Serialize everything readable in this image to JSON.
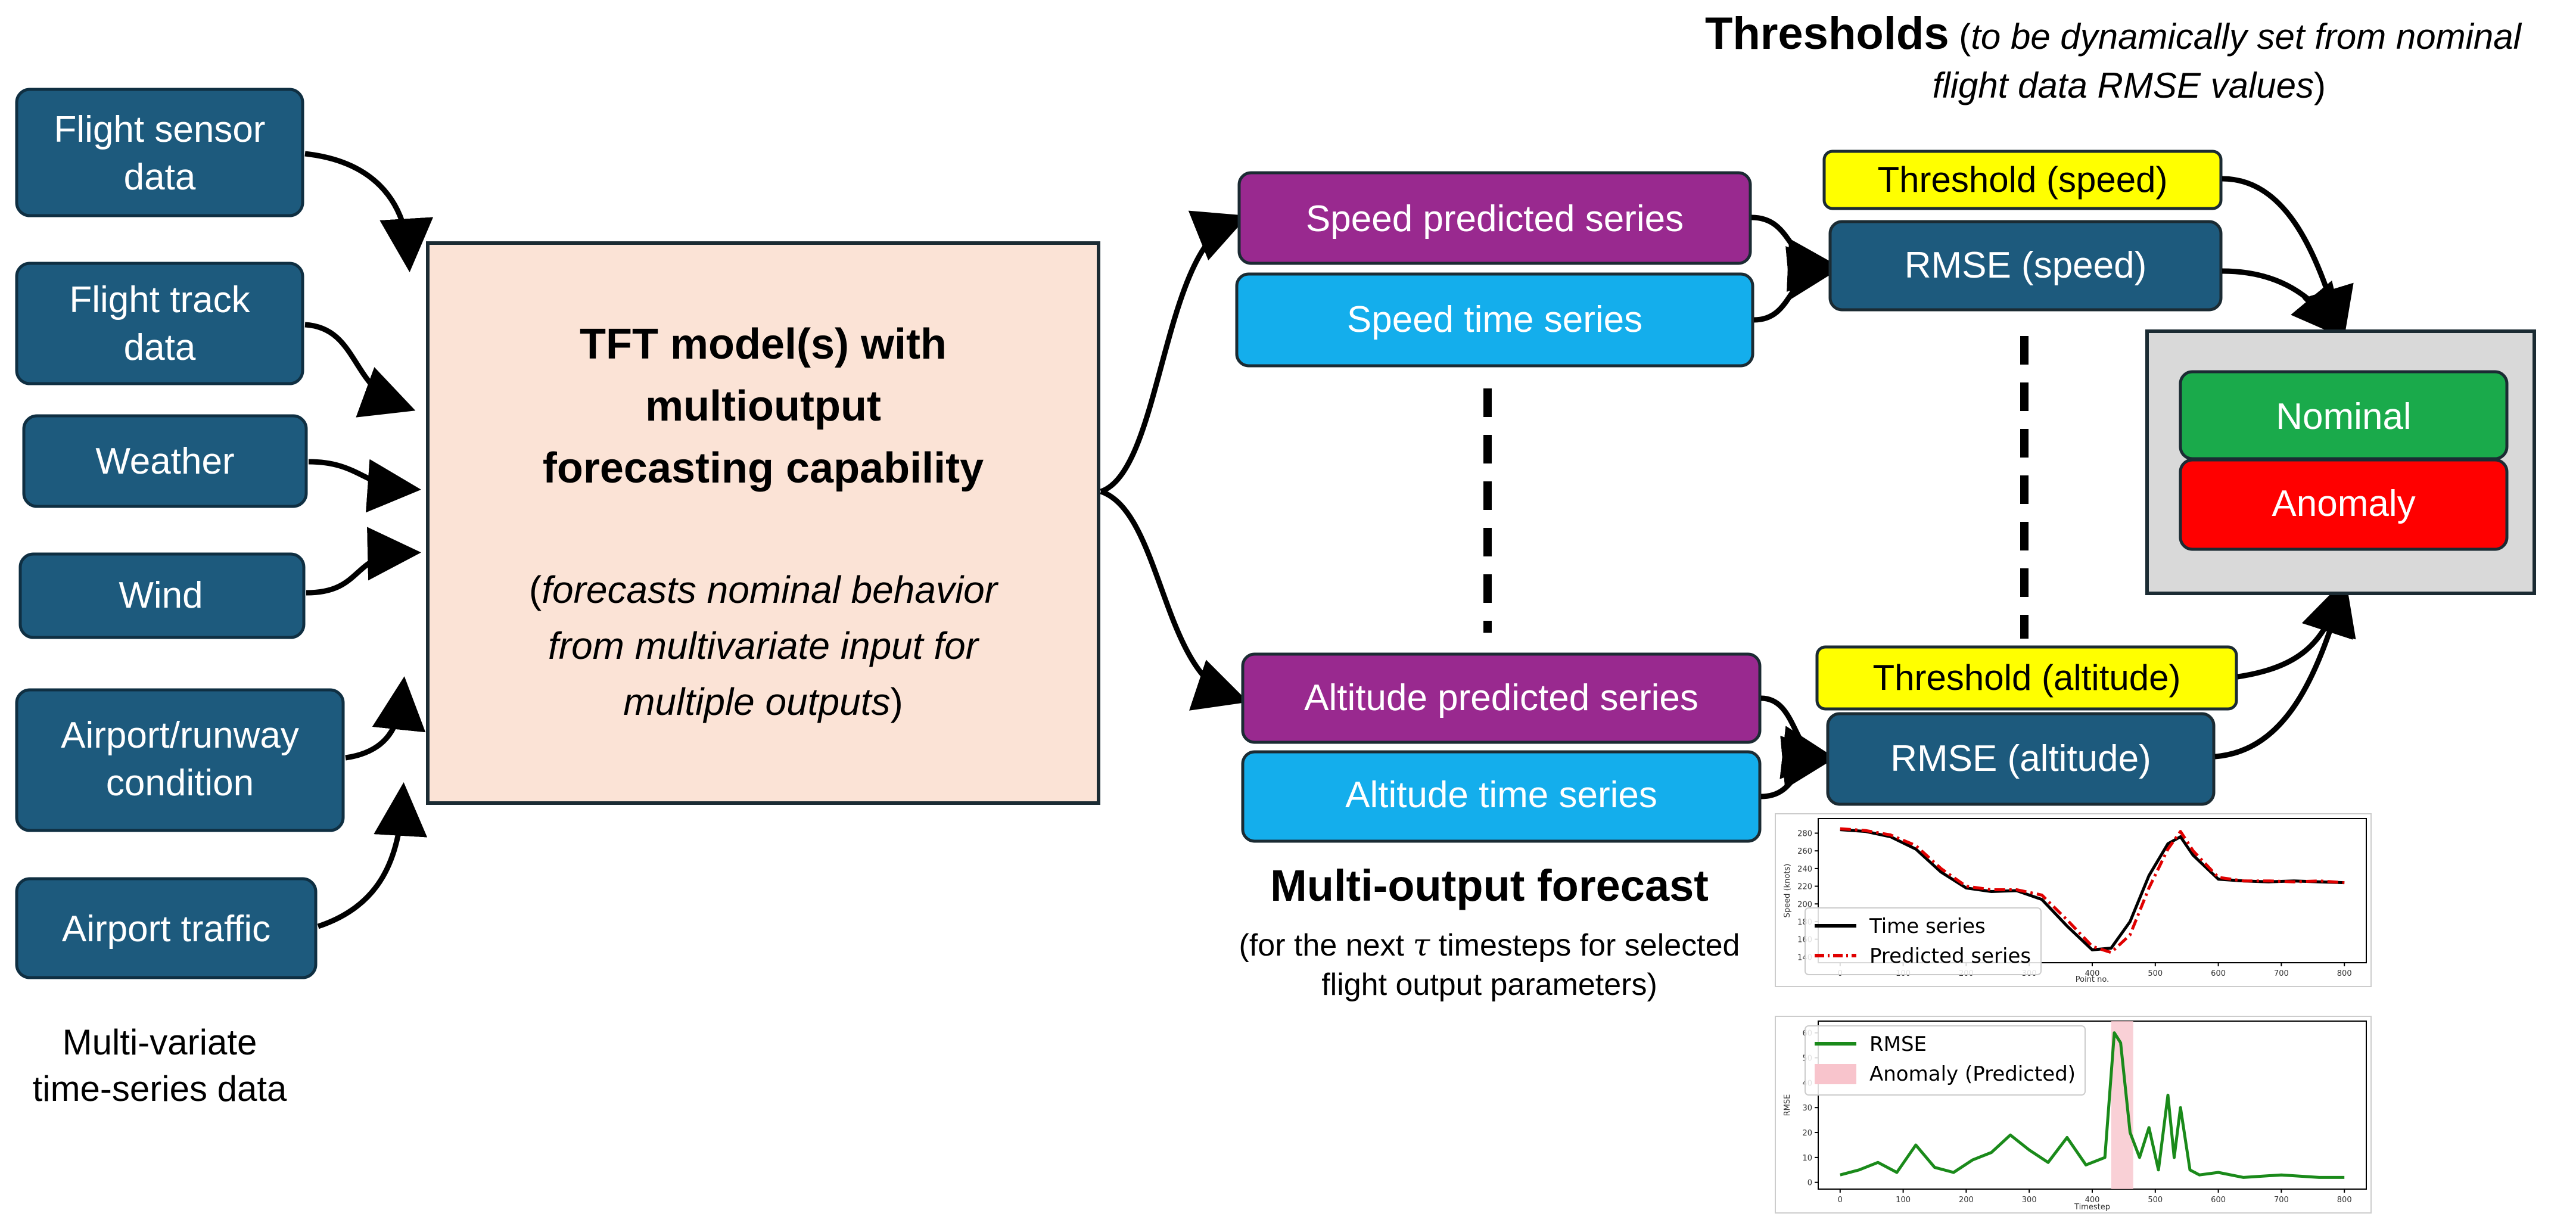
{
  "inputs": {
    "sensor": [
      "Flight sensor",
      "data"
    ],
    "track": [
      "Flight track",
      "data"
    ],
    "weather": "Weather",
    "wind": "Wind",
    "airport_condition": [
      "Airport/runway",
      "condition"
    ],
    "traffic": "Airport traffic",
    "caption": [
      "Multi-variate",
      "time-series data"
    ]
  },
  "model": {
    "title": [
      "TFT model(s) with",
      "multioutput",
      "forecasting capability"
    ],
    "desc_open": "(",
    "desc_line1_italic": "forecasts nominal behavior",
    "desc_line2_italic": "from multivariate input for",
    "desc_line3_italic": "multiple outputs",
    "desc_close": ")"
  },
  "forecast": {
    "speed_pred": "Speed predicted series",
    "speed_ts": "Speed time series",
    "alt_pred": "Altitude predicted series",
    "alt_ts": "Altitude time series",
    "title": "Multi-output forecast",
    "sub_line1_a": "(for the next ",
    "sub_tau": "τ",
    "sub_line1_b": " timesteps for selected",
    "sub_line2": "flight output parameters)"
  },
  "thresholds": {
    "title_bold": "Thresholds",
    "title_rest_a": " (",
    "title_italic_1": "to be dynamically set from nominal",
    "title_italic_2": "flight data RMSE values",
    "title_rest_b": ")",
    "speed": "Threshold (speed)",
    "altitude": "Threshold (altitude)"
  },
  "rmse": {
    "speed": "RMSE (speed)",
    "altitude": "RMSE (altitude)"
  },
  "status": {
    "nominal": "Nominal",
    "anomaly": "Anomaly"
  },
  "colors": {
    "input_box": "#1d5a7d",
    "model_fill": "#fbe3d6",
    "purple": "#99298f",
    "cyan": "#14aeec",
    "yellow": "#ffff00",
    "green": "#1aaa4b",
    "red": "#ff0000",
    "gray": "#d9d9d9"
  },
  "chart_data": [
    {
      "type": "line",
      "title": "",
      "xlabel": "Point no.",
      "ylabel": "Speed (knots)",
      "xlim": [
        0,
        800
      ],
      "ylim": [
        140,
        290
      ],
      "xticks": [
        "0",
        "100",
        "200",
        "300",
        "400",
        "500",
        "600",
        "700",
        "800"
      ],
      "yticks": [
        "140",
        "160",
        "180",
        "200",
        "220",
        "240",
        "260",
        "280"
      ],
      "legend": "lower-left",
      "x": [
        0,
        40,
        80,
        120,
        160,
        200,
        240,
        280,
        320,
        360,
        400,
        430,
        460,
        490,
        520,
        540,
        560,
        600,
        640,
        680,
        720,
        760,
        800
      ],
      "series": [
        {
          "name": "Time series",
          "values": [
            284,
            282,
            276,
            262,
            236,
            218,
            214,
            215,
            205,
            175,
            148,
            150,
            180,
            232,
            268,
            276,
            255,
            228,
            226,
            225,
            226,
            225,
            224
          ]
        },
        {
          "name": "Predicted series",
          "values": [
            285,
            283,
            278,
            266,
            240,
            220,
            216,
            216,
            210,
            182,
            152,
            145,
            165,
            218,
            262,
            282,
            260,
            230,
            226,
            226,
            225,
            226,
            224
          ]
        }
      ]
    },
    {
      "type": "line",
      "title": "",
      "xlabel": "Timestep",
      "ylabel": "RMSE",
      "xlim": [
        0,
        800
      ],
      "ylim": [
        0,
        62
      ],
      "xticks": [
        "0",
        "100",
        "200",
        "300",
        "400",
        "500",
        "600",
        "700",
        "800"
      ],
      "yticks": [
        "0",
        "10",
        "20",
        "30",
        "40",
        "50",
        "60"
      ],
      "legend": "upper-left",
      "x": [
        0,
        30,
        60,
        90,
        120,
        150,
        180,
        210,
        240,
        270,
        300,
        330,
        360,
        390,
        420,
        435,
        445,
        460,
        475,
        490,
        505,
        520,
        530,
        540,
        555,
        570,
        600,
        640,
        700,
        760,
        800
      ],
      "series": [
        {
          "name": "RMSE",
          "values": [
            3,
            5,
            8,
            4,
            15,
            6,
            4,
            9,
            12,
            19,
            13,
            8,
            18,
            7,
            10,
            60,
            56,
            20,
            10,
            22,
            5,
            35,
            10,
            30,
            5,
            3,
            4,
            2,
            3,
            2,
            2
          ]
        }
      ],
      "shaded_regions": [
        {
          "name": "Anomaly (Predicted)",
          "x_start": 430,
          "x_end": 465
        }
      ]
    }
  ]
}
